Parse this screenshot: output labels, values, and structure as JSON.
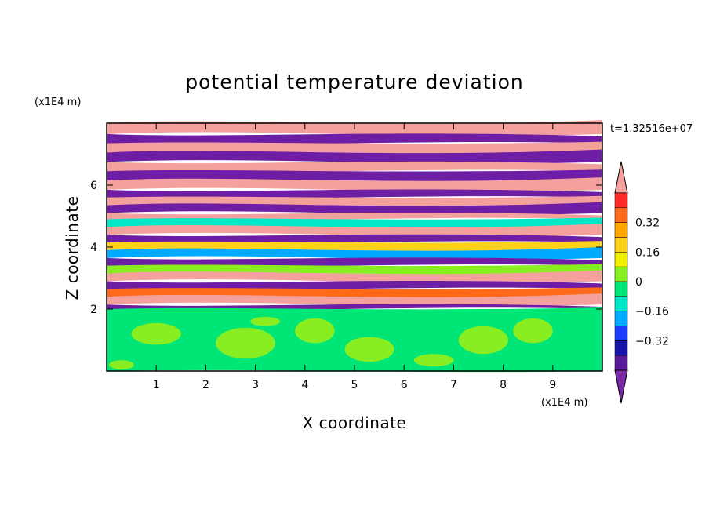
{
  "chart_data": {
    "type": "heatmap",
    "title": "potential temperature deviation",
    "xlabel": "X coordinate",
    "ylabel": "Z coordinate",
    "x_multiplier_label": "(x1E4 m)",
    "y_multiplier_label": "(x1E4 m)",
    "time_label": "t=1.32516e+07",
    "xlim": [
      0,
      10
    ],
    "ylim": [
      0,
      8
    ],
    "x_ticks": [
      "1",
      "2",
      "3",
      "4",
      "5",
      "6",
      "7",
      "8",
      "9"
    ],
    "y_ticks": [
      "2",
      "4",
      "6"
    ],
    "colorbar": {
      "levels": [
        -0.48,
        -0.4,
        -0.32,
        -0.24,
        -0.16,
        -0.08,
        0,
        0.08,
        0.16,
        0.24,
        0.32,
        0.4,
        0.48
      ],
      "tick_labels": [
        "0.32",
        "0.16",
        "0",
        "−0.16",
        "−0.32"
      ],
      "colors_top_to_bottom": [
        "#f4a09c",
        "#ff2a2a",
        "#ff6a1a",
        "#ffa500",
        "#ffd21a",
        "#f0f000",
        "#88ee22",
        "#00e676",
        "#00e8c8",
        "#00aaff",
        "#1a3cff",
        "#1414a8",
        "#5a1a9a",
        "#7a28a8"
      ]
    },
    "bands": [
      {
        "z": [
          7.65,
          8.0
        ],
        "color": "#f4a09c"
      },
      {
        "z": [
          7.35,
          7.65
        ],
        "color": "#6e1ea4"
      },
      {
        "z": [
          7.05,
          7.35
        ],
        "color": "#f4a09c"
      },
      {
        "z": [
          6.75,
          7.05
        ],
        "color": "#6e1ea4"
      },
      {
        "z": [
          6.45,
          6.75
        ],
        "color": "#f4a09c"
      },
      {
        "z": [
          6.15,
          6.45
        ],
        "color": "#6e1ea4"
      },
      {
        "z": [
          5.85,
          6.15
        ],
        "color": "#f4a09c"
      },
      {
        "z": [
          5.6,
          5.85
        ],
        "color": "#6e1ea4"
      },
      {
        "z": [
          5.35,
          5.6
        ],
        "color": "#f4a09c"
      },
      {
        "z": [
          5.1,
          5.35
        ],
        "color": "#6e1ea4"
      },
      {
        "z": [
          4.9,
          5.1
        ],
        "color": "#f4a09c"
      },
      {
        "z": [
          4.65,
          4.9
        ],
        "color": "#00e8c8"
      },
      {
        "z": [
          4.4,
          4.65
        ],
        "color": "#f4a09c"
      },
      {
        "z": [
          4.15,
          4.4
        ],
        "color": "#6e1ea4"
      },
      {
        "z": [
          3.9,
          4.15
        ],
        "color": "#ffd21a"
      },
      {
        "z": [
          3.65,
          3.9
        ],
        "color": "#00aaff"
      },
      {
        "z": [
          3.4,
          3.65
        ],
        "color": "#6e1ea4"
      },
      {
        "z": [
          3.15,
          3.4
        ],
        "color": "#88ee22"
      },
      {
        "z": [
          2.9,
          3.15
        ],
        "color": "#f4a09c"
      },
      {
        "z": [
          2.65,
          2.9
        ],
        "color": "#6e1ea4"
      },
      {
        "z": [
          2.4,
          2.65
        ],
        "color": "#ff6a1a"
      },
      {
        "z": [
          2.15,
          2.4
        ],
        "color": "#f4a09c"
      },
      {
        "z": [
          2.0,
          2.15
        ],
        "color": "#6e1ea4"
      },
      {
        "z": [
          0.0,
          2.0
        ],
        "color": "#00e676"
      }
    ]
  }
}
